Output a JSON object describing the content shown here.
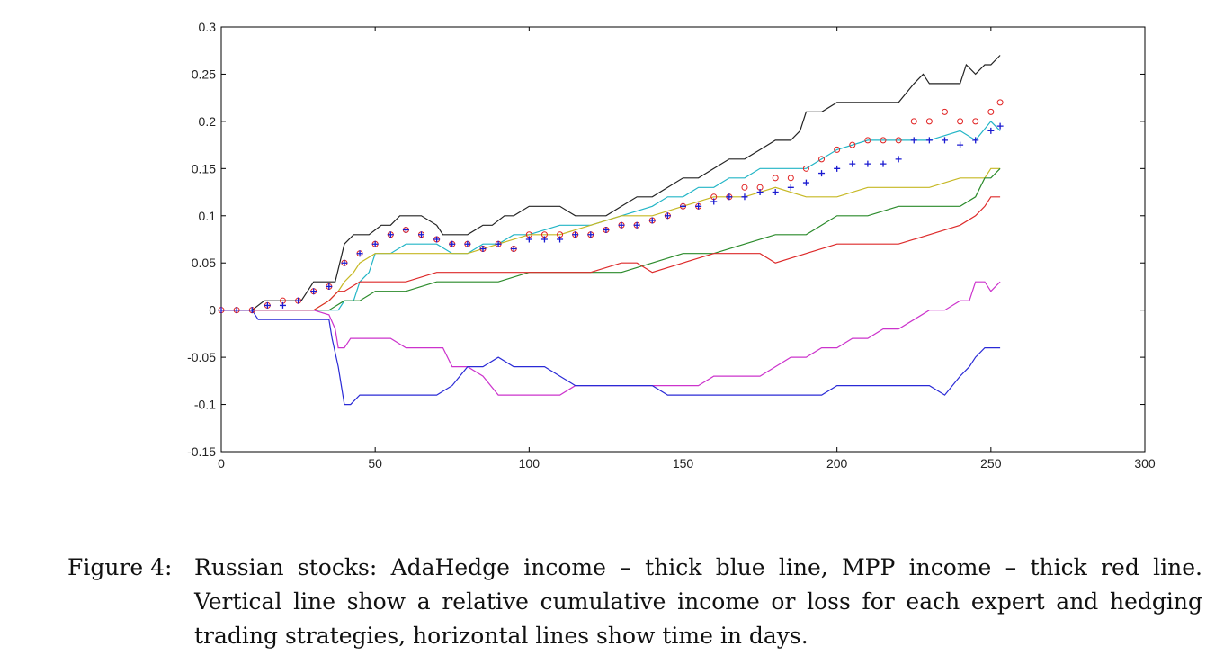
{
  "chart_data": {
    "type": "line",
    "xlim": [
      0,
      300
    ],
    "ylim": [
      -0.15,
      0.3
    ],
    "x_ticks": [
      0,
      50,
      100,
      150,
      200,
      250,
      300
    ],
    "y_ticks": [
      -0.15,
      -0.1,
      -0.05,
      0,
      0.05,
      0.1,
      0.15,
      0.2,
      0.25,
      0.3
    ],
    "x_tick_labels": [
      "0",
      "50",
      "100",
      "150",
      "200",
      "250",
      "300"
    ],
    "y_tick_labels": [
      "-0.15",
      "-0.1",
      "-0.05",
      "0",
      "0.05",
      "0.1",
      "0.15",
      "0.2",
      "0.25",
      "0.3"
    ],
    "grid": false,
    "legend": "none",
    "series": [
      {
        "color": "#222222",
        "style": "line",
        "x": [
          0,
          10,
          14,
          20,
          26,
          28,
          30,
          35,
          37,
          40,
          43,
          48,
          52,
          55,
          58,
          60,
          65,
          70,
          72,
          75,
          80,
          85,
          88,
          92,
          95,
          100,
          105,
          110,
          115,
          120,
          125,
          130,
          135,
          140,
          145,
          150,
          155,
          160,
          165,
          170,
          175,
          180,
          185,
          188,
          190,
          195,
          200,
          205,
          210,
          215,
          220,
          225,
          228,
          230,
          235,
          240,
          242,
          245,
          248,
          250,
          253
        ],
        "y": [
          0,
          0,
          0.01,
          0.01,
          0.01,
          0.02,
          0.03,
          0.03,
          0.03,
          0.07,
          0.08,
          0.08,
          0.09,
          0.09,
          0.1,
          0.1,
          0.1,
          0.09,
          0.08,
          0.08,
          0.08,
          0.09,
          0.09,
          0.1,
          0.1,
          0.11,
          0.11,
          0.11,
          0.1,
          0.1,
          0.1,
          0.11,
          0.12,
          0.12,
          0.13,
          0.14,
          0.14,
          0.15,
          0.16,
          0.16,
          0.17,
          0.18,
          0.18,
          0.19,
          0.21,
          0.21,
          0.22,
          0.22,
          0.22,
          0.22,
          0.22,
          0.24,
          0.25,
          0.24,
          0.24,
          0.24,
          0.26,
          0.25,
          0.26,
          0.26,
          0.27
        ]
      },
      {
        "color": "#22b5c6",
        "style": "line",
        "x": [
          0,
          20,
          30,
          35,
          38,
          40,
          43,
          45,
          48,
          50,
          55,
          60,
          65,
          70,
          75,
          80,
          85,
          90,
          95,
          100,
          110,
          120,
          130,
          140,
          145,
          150,
          155,
          160,
          165,
          170,
          175,
          180,
          185,
          190,
          195,
          200,
          210,
          220,
          230,
          240,
          245,
          250,
          253
        ],
        "y": [
          0,
          0,
          0,
          0,
          0,
          0.01,
          0.01,
          0.03,
          0.04,
          0.06,
          0.06,
          0.07,
          0.07,
          0.07,
          0.06,
          0.06,
          0.07,
          0.07,
          0.08,
          0.08,
          0.09,
          0.09,
          0.1,
          0.11,
          0.12,
          0.12,
          0.13,
          0.13,
          0.14,
          0.14,
          0.15,
          0.15,
          0.15,
          0.15,
          0.16,
          0.17,
          0.18,
          0.18,
          0.18,
          0.19,
          0.18,
          0.2,
          0.19
        ]
      },
      {
        "color": "#c6b824",
        "style": "line",
        "x": [
          0,
          20,
          30,
          35,
          38,
          40,
          43,
          45,
          50,
          55,
          60,
          65,
          70,
          80,
          90,
          100,
          110,
          120,
          130,
          140,
          150,
          160,
          170,
          180,
          190,
          200,
          210,
          220,
          230,
          240,
          242,
          245,
          248,
          250,
          253
        ],
        "y": [
          0,
          0,
          0,
          0.01,
          0.02,
          0.03,
          0.04,
          0.05,
          0.06,
          0.06,
          0.06,
          0.06,
          0.06,
          0.06,
          0.07,
          0.08,
          0.08,
          0.09,
          0.1,
          0.1,
          0.11,
          0.12,
          0.12,
          0.13,
          0.12,
          0.12,
          0.13,
          0.13,
          0.13,
          0.14,
          0.14,
          0.14,
          0.14,
          0.15,
          0.15
        ]
      },
      {
        "color": "#2a8a2a",
        "style": "line",
        "x": [
          0,
          20,
          30,
          35,
          40,
          45,
          50,
          60,
          70,
          80,
          90,
          100,
          110,
          115,
          120,
          130,
          140,
          150,
          160,
          170,
          180,
          190,
          195,
          200,
          210,
          220,
          230,
          240,
          245,
          248,
          250,
          253
        ],
        "y": [
          0,
          0,
          0,
          0,
          0.01,
          0.01,
          0.02,
          0.02,
          0.03,
          0.03,
          0.03,
          0.04,
          0.04,
          0.04,
          0.04,
          0.04,
          0.05,
          0.06,
          0.06,
          0.07,
          0.08,
          0.08,
          0.09,
          0.1,
          0.1,
          0.11,
          0.11,
          0.11,
          0.12,
          0.14,
          0.14,
          0.15
        ]
      },
      {
        "color": "#dd2a2a",
        "style": "line",
        "x": [
          0,
          20,
          30,
          35,
          38,
          40,
          45,
          50,
          60,
          70,
          80,
          90,
          100,
          110,
          120,
          130,
          135,
          140,
          150,
          160,
          170,
          175,
          180,
          190,
          200,
          210,
          220,
          230,
          240,
          245,
          248,
          250,
          253
        ],
        "y": [
          0,
          0,
          0,
          0.01,
          0.02,
          0.02,
          0.03,
          0.03,
          0.03,
          0.04,
          0.04,
          0.04,
          0.04,
          0.04,
          0.04,
          0.05,
          0.05,
          0.04,
          0.05,
          0.06,
          0.06,
          0.06,
          0.05,
          0.06,
          0.07,
          0.07,
          0.07,
          0.08,
          0.09,
          0.1,
          0.11,
          0.12,
          0.12
        ]
      },
      {
        "color": "#cc33cc",
        "style": "line",
        "x": [
          0,
          20,
          30,
          35,
          37,
          38,
          40,
          42,
          45,
          50,
          55,
          60,
          65,
          70,
          72,
          75,
          80,
          85,
          90,
          92,
          95,
          100,
          105,
          110,
          115,
          120,
          130,
          140,
          145,
          150,
          155,
          160,
          165,
          170,
          175,
          180,
          185,
          190,
          195,
          200,
          205,
          210,
          215,
          220,
          225,
          230,
          235,
          240,
          243,
          245,
          248,
          250,
          253
        ],
        "y": [
          0,
          0,
          0,
          -0.005,
          -0.02,
          -0.04,
          -0.04,
          -0.03,
          -0.03,
          -0.03,
          -0.03,
          -0.04,
          -0.04,
          -0.04,
          -0.04,
          -0.06,
          -0.06,
          -0.07,
          -0.09,
          -0.09,
          -0.09,
          -0.09,
          -0.09,
          -0.09,
          -0.08,
          -0.08,
          -0.08,
          -0.08,
          -0.08,
          -0.08,
          -0.08,
          -0.07,
          -0.07,
          -0.07,
          -0.07,
          -0.06,
          -0.05,
          -0.05,
          -0.04,
          -0.04,
          -0.03,
          -0.03,
          -0.02,
          -0.02,
          -0.01,
          0,
          0,
          0.01,
          0.01,
          0.03,
          0.03,
          0.02,
          0.03
        ]
      },
      {
        "color": "#2a2ad6",
        "style": "line",
        "x": [
          0,
          10,
          12,
          20,
          25,
          30,
          33,
          35,
          36,
          38,
          39,
          40,
          41,
          42,
          45,
          50,
          55,
          60,
          65,
          70,
          75,
          80,
          85,
          90,
          95,
          100,
          105,
          110,
          115,
          120,
          125,
          130,
          135,
          140,
          145,
          150,
          155,
          160,
          165,
          170,
          175,
          180,
          185,
          190,
          195,
          200,
          205,
          210,
          215,
          220,
          225,
          230,
          235,
          240,
          243,
          245,
          248,
          250,
          253
        ],
        "y": [
          0,
          0,
          -0.01,
          -0.01,
          -0.01,
          -0.01,
          -0.01,
          -0.01,
          -0.03,
          -0.06,
          -0.08,
          -0.1,
          -0.1,
          -0.1,
          -0.09,
          -0.09,
          -0.09,
          -0.09,
          -0.09,
          -0.09,
          -0.08,
          -0.06,
          -0.06,
          -0.05,
          -0.06,
          -0.06,
          -0.06,
          -0.07,
          -0.08,
          -0.08,
          -0.08,
          -0.08,
          -0.08,
          -0.08,
          -0.09,
          -0.09,
          -0.09,
          -0.09,
          -0.09,
          -0.09,
          -0.09,
          -0.09,
          -0.09,
          -0.09,
          -0.09,
          -0.08,
          -0.08,
          -0.08,
          -0.08,
          -0.08,
          -0.08,
          -0.08,
          -0.09,
          -0.07,
          -0.06,
          -0.05,
          -0.04,
          -0.04,
          -0.04
        ]
      },
      {
        "color": "#e02020",
        "style": "circle",
        "x": [
          0,
          5,
          10,
          15,
          20,
          25,
          30,
          35,
          40,
          45,
          50,
          55,
          60,
          65,
          70,
          75,
          80,
          85,
          90,
          95,
          100,
          105,
          110,
          115,
          120,
          125,
          130,
          135,
          140,
          145,
          150,
          155,
          160,
          165,
          170,
          175,
          180,
          185,
          190,
          195,
          200,
          205,
          210,
          215,
          220,
          225,
          230,
          235,
          240,
          245,
          250,
          253
        ],
        "y": [
          0,
          0,
          0,
          0.005,
          0.01,
          0.01,
          0.02,
          0.025,
          0.05,
          0.06,
          0.07,
          0.08,
          0.085,
          0.08,
          0.075,
          0.07,
          0.07,
          0.065,
          0.07,
          0.065,
          0.08,
          0.08,
          0.08,
          0.08,
          0.08,
          0.085,
          0.09,
          0.09,
          0.095,
          0.1,
          0.11,
          0.11,
          0.12,
          0.12,
          0.13,
          0.13,
          0.14,
          0.14,
          0.15,
          0.16,
          0.17,
          0.175,
          0.18,
          0.18,
          0.18,
          0.2,
          0.2,
          0.21,
          0.2,
          0.2,
          0.21,
          0.22
        ]
      },
      {
        "color": "#1a1ad0",
        "style": "plus",
        "x": [
          0,
          5,
          10,
          15,
          20,
          25,
          30,
          35,
          40,
          45,
          50,
          55,
          60,
          65,
          70,
          75,
          80,
          85,
          90,
          95,
          100,
          105,
          110,
          115,
          120,
          125,
          130,
          135,
          140,
          145,
          150,
          155,
          160,
          165,
          170,
          175,
          180,
          185,
          190,
          195,
          200,
          205,
          210,
          215,
          220,
          225,
          230,
          235,
          240,
          245,
          250,
          253
        ],
        "y": [
          0,
          0,
          0,
          0.005,
          0.005,
          0.01,
          0.02,
          0.025,
          0.05,
          0.06,
          0.07,
          0.08,
          0.085,
          0.08,
          0.075,
          0.07,
          0.07,
          0.065,
          0.07,
          0.065,
          0.075,
          0.075,
          0.075,
          0.08,
          0.08,
          0.085,
          0.09,
          0.09,
          0.095,
          0.1,
          0.11,
          0.11,
          0.115,
          0.12,
          0.12,
          0.125,
          0.125,
          0.13,
          0.135,
          0.145,
          0.15,
          0.155,
          0.155,
          0.155,
          0.16,
          0.18,
          0.18,
          0.18,
          0.175,
          0.18,
          0.19,
          0.195
        ]
      }
    ]
  },
  "caption": {
    "label": "Figure 4:",
    "text": "Russian stocks: AdaHedge income – thick blue line, MPP income – thick red line. Vertical line show a relative cumulative income or loss for each expert and hedging trading strategies, horizontal lines show time in days."
  }
}
